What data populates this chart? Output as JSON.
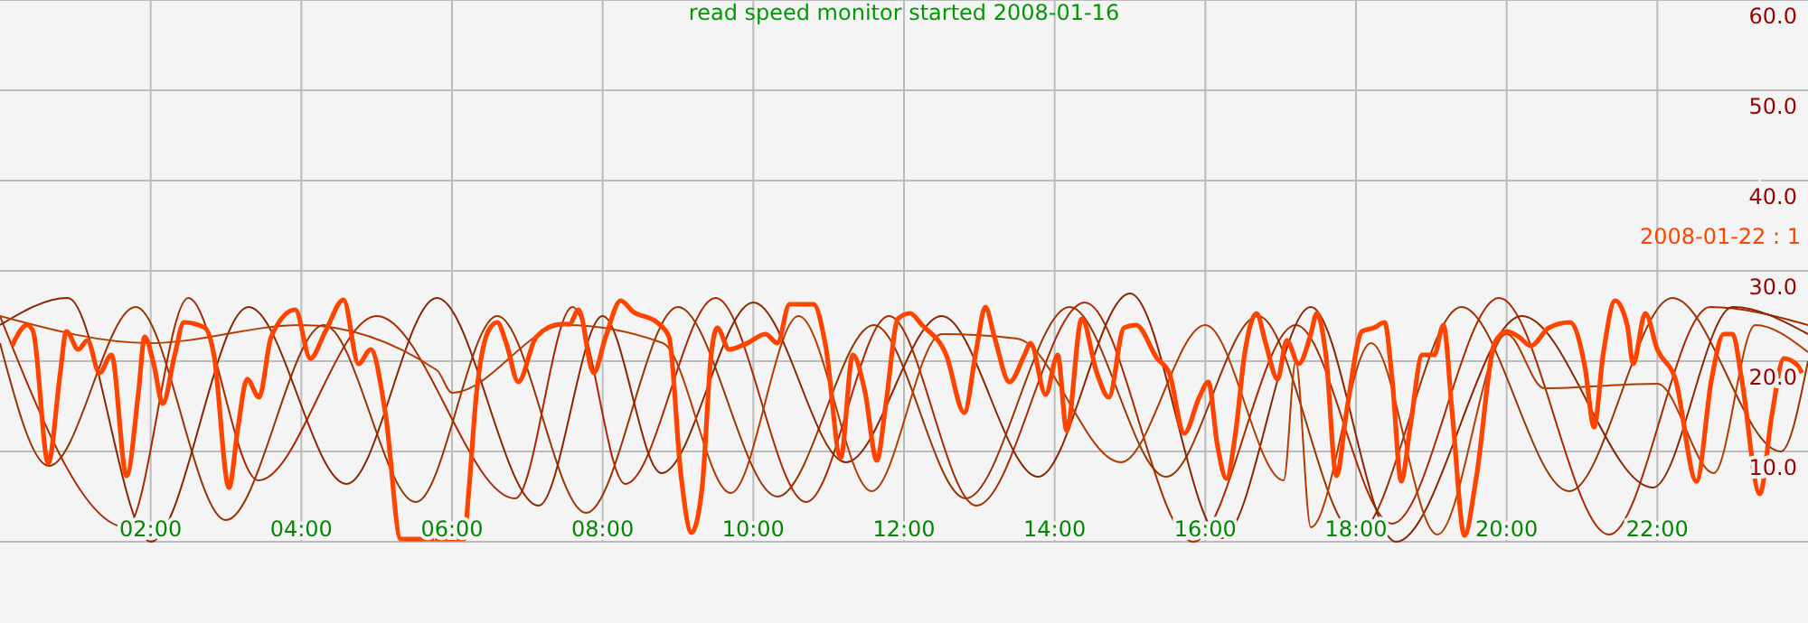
{
  "chart_data": {
    "type": "line",
    "title": "read speed monitor started 2008-01-16",
    "xlim": [
      0,
      24
    ],
    "ylim": [
      0,
      60
    ],
    "xticks": [
      {
        "value": 2,
        "label": "02:00"
      },
      {
        "value": 4,
        "label": "04:00"
      },
      {
        "value": 6,
        "label": "06:00"
      },
      {
        "value": 8,
        "label": "08:00"
      },
      {
        "value": 10,
        "label": "10:00"
      },
      {
        "value": 12,
        "label": "12:00"
      },
      {
        "value": 14,
        "label": "14:00"
      },
      {
        "value": 16,
        "label": "16:00"
      },
      {
        "value": 18,
        "label": "18:00"
      },
      {
        "value": 20,
        "label": "20:00"
      },
      {
        "value": 22,
        "label": "22:00"
      }
    ],
    "yticks": [
      {
        "value": 10,
        "label": "10.0"
      },
      {
        "value": 20,
        "label": "20.0"
      },
      {
        "value": 30,
        "label": "30.0"
      },
      {
        "value": 40,
        "label": "40.0"
      },
      {
        "value": 50,
        "label": "50.0"
      },
      {
        "value": 60,
        "label": "60.0"
      }
    ],
    "grid": true,
    "legend": "right",
    "series": [
      {
        "color": "#993300",
        "x": [
          0,
          0.65,
          1.8,
          3.0,
          4.3,
          5.52,
          6.6,
          7.78,
          9,
          10.32,
          11.6,
          12.82,
          14.2,
          15.48,
          16.7,
          18,
          19.4,
          20.83,
          22.2,
          23.64,
          24
        ],
        "values": [
          22,
          8.4,
          26,
          2.4,
          24,
          4.4,
          25,
          3.2,
          26,
          5,
          24,
          4.8,
          26,
          7.2,
          25,
          0.8,
          26,
          5.6,
          27,
          10,
          20
        ]
      },
      {
        "color": "#aa2a00",
        "x": [
          0,
          1.68,
          2.5,
          3.43,
          5,
          6.84,
          7.6,
          8.3,
          9.5,
          10.7,
          11.8,
          12.96,
          14.4,
          15.84,
          17.2,
          18.48,
          19.9,
          21.36,
          22.7,
          24
        ],
        "values": [
          25,
          1.6,
          27,
          6.8,
          25,
          4.8,
          26,
          6.4,
          27,
          4.4,
          25,
          4,
          26.5,
          0,
          24,
          2,
          27,
          0.8,
          26,
          24
        ]
      },
      {
        "color": "#8b2500",
        "x": [
          0,
          0.9,
          2,
          3.3,
          4.6,
          5.8,
          7.15,
          8,
          8.78,
          10,
          11.23,
          12.5,
          13.78,
          15,
          16.22,
          17.4,
          18.53,
          20.2,
          21.94,
          23,
          24
        ],
        "values": [
          24,
          27,
          0,
          26,
          6.4,
          27,
          4,
          25,
          7.6,
          26.5,
          8.8,
          25,
          7.2,
          27.5,
          0.4,
          26,
          0,
          25,
          6,
          26,
          23
        ]
      },
      {
        "color": "#b33c00",
        "x": [
          0,
          2,
          4,
          5.8,
          6,
          7.5,
          8.8,
          9.7,
          10.6,
          11.57,
          12.5,
          13.5,
          14.88,
          16,
          17.04,
          17.2,
          17.4,
          18.2,
          19.08,
          20,
          20.5,
          22,
          22.75,
          23.3,
          24
        ],
        "values": [
          25,
          22,
          24,
          19,
          16.5,
          24,
          22,
          5.4,
          25,
          5.6,
          23,
          22.5,
          8.8,
          24,
          6.8,
          20,
          1.6,
          22,
          0.8,
          23,
          17,
          17.5,
          7.6,
          24,
          21
        ]
      },
      {
        "name": "2008-01-22 : 1",
        "color": "#ff4400",
        "x": [
          0.16,
          0.36,
          0.44,
          0.64,
          0.8,
          0.88,
          1.04,
          1.16,
          1.32,
          1.48,
          1.68,
          1.84,
          1.92,
          2.04,
          2.16,
          2.32,
          2.44,
          2.72,
          2.84,
          3.04,
          3.16,
          3.28,
          3.44,
          3.6,
          3.92,
          4.12,
          4.32,
          4.56,
          4.76,
          4.92,
          5.12,
          5.32,
          6.16,
          6.22,
          6.32,
          6.48,
          6.6,
          6.72,
          6.88,
          7.12,
          7.44,
          7.56,
          7.68,
          7.88,
          8.04,
          8.24,
          8.4,
          8.72,
          8.88,
          9.04,
          9.18,
          9.32,
          9.44,
          9.52,
          9.68,
          9.92,
          10.16,
          10.32,
          10.48,
          10.8,
          10.96,
          11.16,
          11.32,
          11.48,
          11.64,
          11.76,
          11.92,
          12.08,
          12.24,
          12.56,
          12.8,
          12.96,
          13.08,
          13.2,
          13.4,
          13.6,
          13.68,
          13.88,
          14.04,
          14.16,
          14.36,
          14.56,
          14.72,
          14.92,
          15.08,
          15.36,
          15.52,
          15.72,
          15.92,
          16.04,
          16.16,
          16.28,
          16.4,
          16.52,
          16.68,
          16.8,
          16.96,
          17.08,
          17.24,
          17.4,
          17.48,
          17.6,
          17.74,
          17.88,
          18.08,
          18.24,
          18.38,
          18.48,
          18.6,
          18.72,
          18.88,
          19.04,
          19.16,
          19.28,
          19.44,
          19.6,
          19.84,
          20,
          20.16,
          20.32,
          20.56,
          20.84,
          21.04,
          21.16,
          21.28,
          21.44,
          21.6,
          21.68,
          21.84,
          22,
          22.24,
          22.52,
          22.72,
          22.88,
          23,
          23.12,
          23.36,
          23.52,
          23.68,
          23.84,
          23.92
        ],
        "values": [
          21.7,
          24,
          23.3,
          8.7,
          18.7,
          23.3,
          21.3,
          22.3,
          18.7,
          20.7,
          7.3,
          16.7,
          22.7,
          19.7,
          15.3,
          20.7,
          24.3,
          23.7,
          20.7,
          6,
          12.7,
          18,
          16,
          22.7,
          25.7,
          20.3,
          23.3,
          26.8,
          19.7,
          21.3,
          14,
          0.3,
          0.3,
          5.3,
          16,
          23.3,
          24.3,
          22,
          17.7,
          22.7,
          24.1,
          24.1,
          25.7,
          18.7,
          22.7,
          26.7,
          25.5,
          24.3,
          22.7,
          7.3,
          1,
          6,
          20.7,
          23.7,
          21.3,
          22,
          23,
          22,
          26.3,
          26.3,
          21.7,
          9.3,
          20.7,
          16.7,
          9,
          15.3,
          24.7,
          25.3,
          24,
          20.7,
          14.3,
          21.3,
          26,
          22.7,
          17.7,
          20.7,
          22,
          16.3,
          20.7,
          12.3,
          24.7,
          18.7,
          16,
          23.7,
          24,
          20.3,
          18.7,
          12,
          16,
          17.7,
          10.7,
          7,
          12,
          20.7,
          25.3,
          22,
          18,
          22.3,
          19.7,
          23,
          25.3,
          20.7,
          7.3,
          14.7,
          23.3,
          23.7,
          24.3,
          18,
          6.7,
          12.7,
          20.7,
          20.7,
          24,
          14,
          0.7,
          7.3,
          22,
          23.3,
          22.7,
          21.7,
          23.7,
          24.3,
          19.3,
          12.7,
          20.7,
          26.7,
          24,
          19.7,
          25.3,
          21.3,
          18,
          6.7,
          18,
          23,
          23,
          18,
          5.3,
          14,
          20.3,
          19.7,
          18.7
        ]
      }
    ]
  }
}
